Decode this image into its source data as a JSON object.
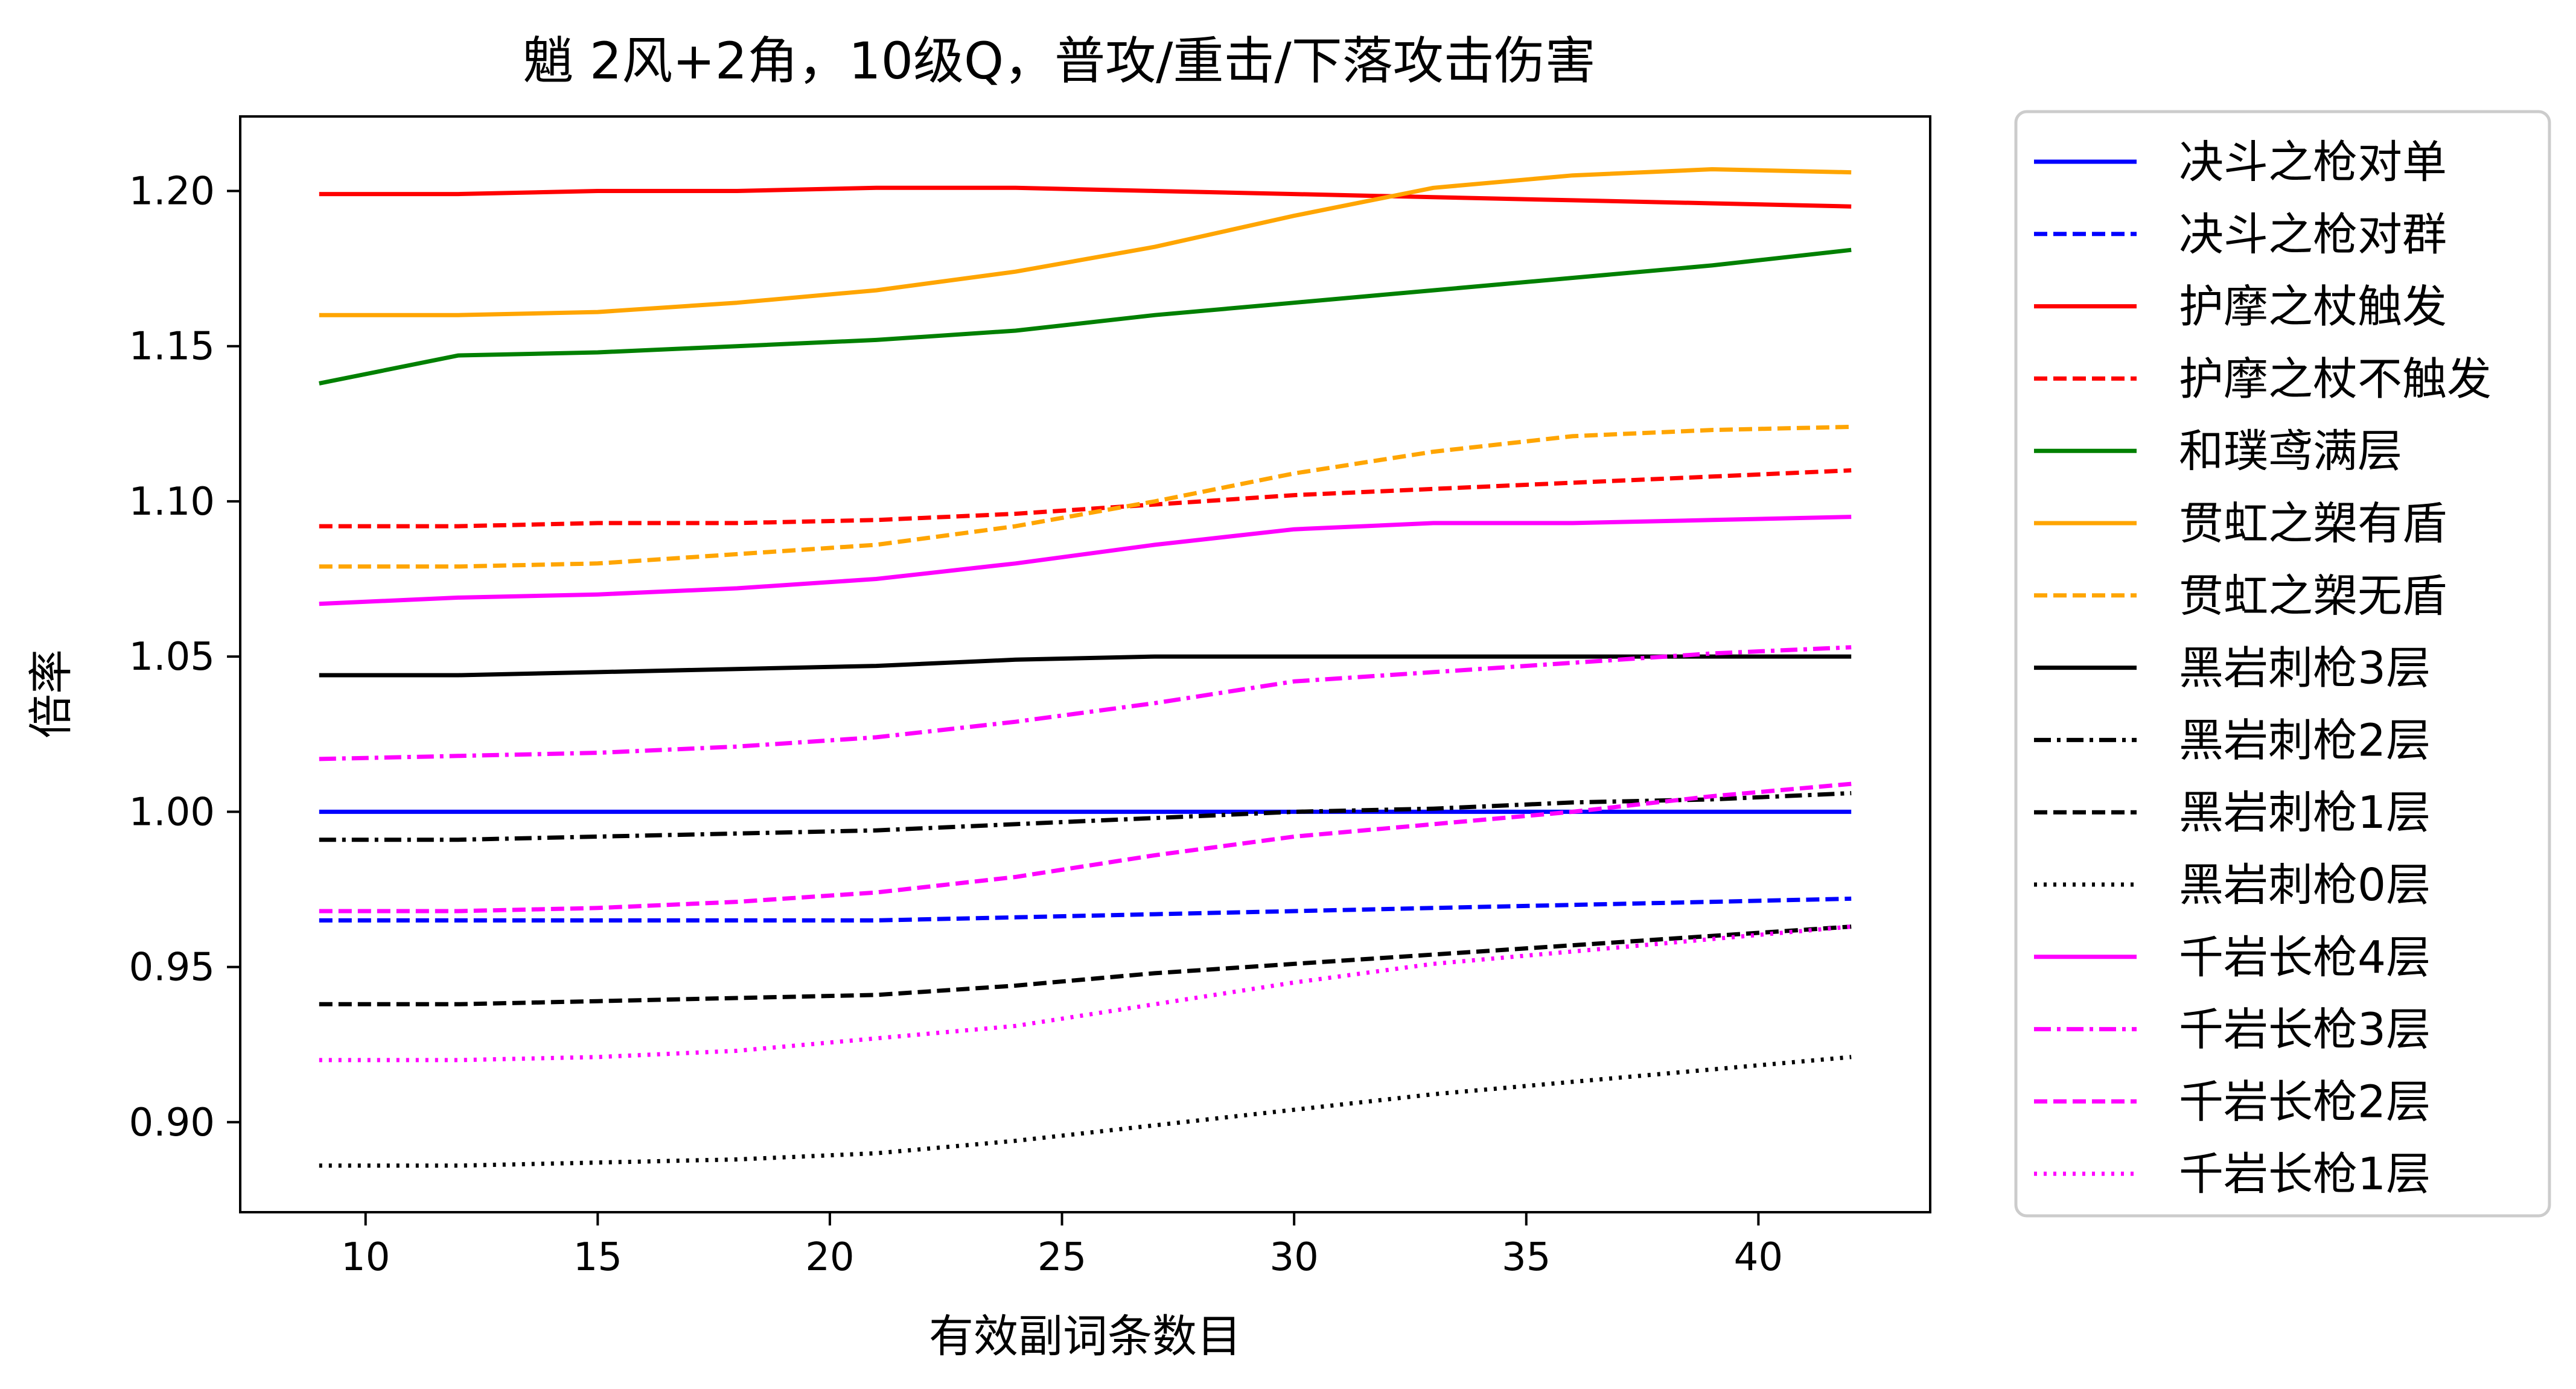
{
  "chart_data": {
    "type": "line",
    "title": "魈 2风+2角，10级Q，普攻/重击/下落攻击伤害",
    "xlabel": "有效副词条数目",
    "ylabel": "倍率",
    "xlim": [
      7.3,
      43.7
    ],
    "ylim": [
      0.871,
      1.224
    ],
    "xticks": [
      10,
      15,
      20,
      25,
      30,
      35,
      40
    ],
    "xtick_labels": [
      "10",
      "15",
      "20",
      "25",
      "30",
      "35",
      "40"
    ],
    "yticks": [
      0.9,
      0.95,
      1.0,
      1.05,
      1.1,
      1.15,
      1.2
    ],
    "ytick_labels": [
      "0.90",
      "0.95",
      "1.00",
      "1.05",
      "1.10",
      "1.15",
      "1.20"
    ],
    "grid": false,
    "legend_position": "outside-right",
    "x": [
      9,
      12,
      15,
      18,
      21,
      24,
      27,
      30,
      33,
      36,
      39,
      42
    ],
    "series": [
      {
        "name": "决斗之枪对单",
        "color": "#0000ff",
        "dash": "solid",
        "values": [
          1.0,
          1.0,
          1.0,
          1.0,
          1.0,
          1.0,
          1.0,
          1.0,
          1.0,
          1.0,
          1.0,
          1.0
        ]
      },
      {
        "name": "决斗之枪对群",
        "color": "#0000ff",
        "dash": "dashed",
        "values": [
          0.965,
          0.965,
          0.965,
          0.965,
          0.965,
          0.966,
          0.967,
          0.968,
          0.969,
          0.97,
          0.971,
          0.972
        ]
      },
      {
        "name": "护摩之杖触发",
        "color": "#ff0000",
        "dash": "solid",
        "values": [
          1.199,
          1.199,
          1.2,
          1.2,
          1.201,
          1.201,
          1.2,
          1.199,
          1.198,
          1.197,
          1.196,
          1.195
        ]
      },
      {
        "name": "护摩之杖不触发",
        "color": "#ff0000",
        "dash": "dashed",
        "values": [
          1.092,
          1.092,
          1.093,
          1.093,
          1.094,
          1.096,
          1.099,
          1.102,
          1.104,
          1.106,
          1.108,
          1.11
        ]
      },
      {
        "name": "和璞鸢满层",
        "color": "#008000",
        "dash": "solid",
        "values": [
          1.138,
          1.147,
          1.148,
          1.15,
          1.152,
          1.155,
          1.16,
          1.164,
          1.168,
          1.172,
          1.176,
          1.181
        ]
      },
      {
        "name": "贯虹之槊有盾",
        "color": "#ffa500",
        "dash": "solid",
        "values": [
          1.16,
          1.16,
          1.161,
          1.164,
          1.168,
          1.174,
          1.182,
          1.192,
          1.201,
          1.205,
          1.207,
          1.206
        ]
      },
      {
        "name": "贯虹之槊无盾",
        "color": "#ffa500",
        "dash": "dashed",
        "values": [
          1.079,
          1.079,
          1.08,
          1.083,
          1.086,
          1.092,
          1.1,
          1.109,
          1.116,
          1.121,
          1.123,
          1.124
        ]
      },
      {
        "name": "黑岩刺枪3层",
        "color": "#000000",
        "dash": "solid",
        "values": [
          1.044,
          1.044,
          1.045,
          1.046,
          1.047,
          1.049,
          1.05,
          1.05,
          1.05,
          1.05,
          1.05,
          1.05
        ]
      },
      {
        "name": "黑岩刺枪2层",
        "color": "#000000",
        "dash": "dashdot",
        "values": [
          0.991,
          0.991,
          0.992,
          0.993,
          0.994,
          0.996,
          0.998,
          1.0,
          1.001,
          1.003,
          1.004,
          1.006
        ]
      },
      {
        "name": "黑岩刺枪1层",
        "color": "#000000",
        "dash": "dashed",
        "values": [
          0.938,
          0.938,
          0.939,
          0.94,
          0.941,
          0.944,
          0.948,
          0.951,
          0.954,
          0.957,
          0.96,
          0.963
        ]
      },
      {
        "name": "黑岩刺枪0层",
        "color": "#000000",
        "dash": "dotted",
        "values": [
          0.886,
          0.886,
          0.887,
          0.888,
          0.89,
          0.894,
          0.899,
          0.904,
          0.909,
          0.913,
          0.917,
          0.921
        ]
      },
      {
        "name": "千岩长枪4层",
        "color": "#ff00ff",
        "dash": "solid",
        "values": [
          1.067,
          1.069,
          1.07,
          1.072,
          1.075,
          1.08,
          1.086,
          1.091,
          1.093,
          1.093,
          1.094,
          1.095
        ]
      },
      {
        "name": "千岩长枪3层",
        "color": "#ff00ff",
        "dash": "dashdot",
        "values": [
          1.017,
          1.018,
          1.019,
          1.021,
          1.024,
          1.029,
          1.035,
          1.042,
          1.045,
          1.048,
          1.051,
          1.053
        ]
      },
      {
        "name": "千岩长枪2层",
        "color": "#ff00ff",
        "dash": "dashed",
        "values": [
          0.968,
          0.968,
          0.969,
          0.971,
          0.974,
          0.979,
          0.986,
          0.992,
          0.996,
          1.0,
          1.005,
          1.009
        ]
      },
      {
        "name": "千岩长枪1层",
        "color": "#ff00ff",
        "dash": "dotted",
        "values": [
          0.92,
          0.92,
          0.921,
          0.923,
          0.927,
          0.931,
          0.938,
          0.945,
          0.951,
          0.955,
          0.959,
          0.963
        ]
      }
    ]
  }
}
